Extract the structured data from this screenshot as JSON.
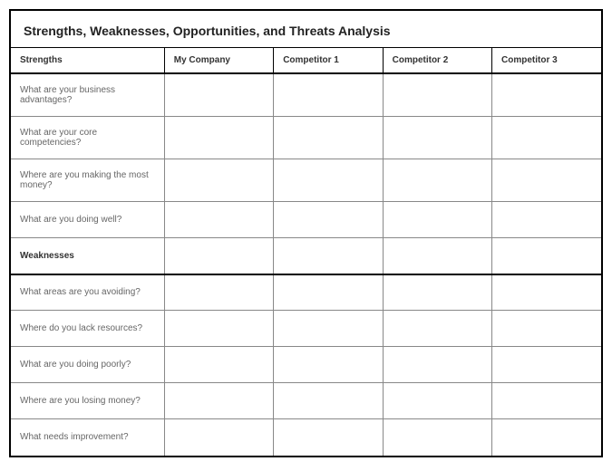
{
  "title": "Strengths, Weaknesses, Opportunities, and Threats Analysis",
  "columns": {
    "c0": "Strengths",
    "c1": "My Company",
    "c2": "Competitor 1",
    "c3": "Competitor 2",
    "c4": "Competitor 3"
  },
  "strengths": {
    "q0": "What are your business advantages?",
    "q1": "What are your core competencies?",
    "q2": "Where are you making the most money?",
    "q3": "What are you doing well?"
  },
  "weaknesses_label": "Weaknesses",
  "weaknesses": {
    "q0": "What areas are you avoiding?",
    "q1": "Where do you lack resources?",
    "q2": "What are you doing poorly?",
    "q3": "Where are you losing money?",
    "q4": "What needs improvement?"
  },
  "colors": {
    "border_strong": "#000000",
    "border_light": "#888888",
    "text_header": "#333333",
    "text_body": "#666666",
    "background": "#ffffff"
  },
  "fonts": {
    "title_size": 14,
    "header_size": 10,
    "body_size": 10
  }
}
